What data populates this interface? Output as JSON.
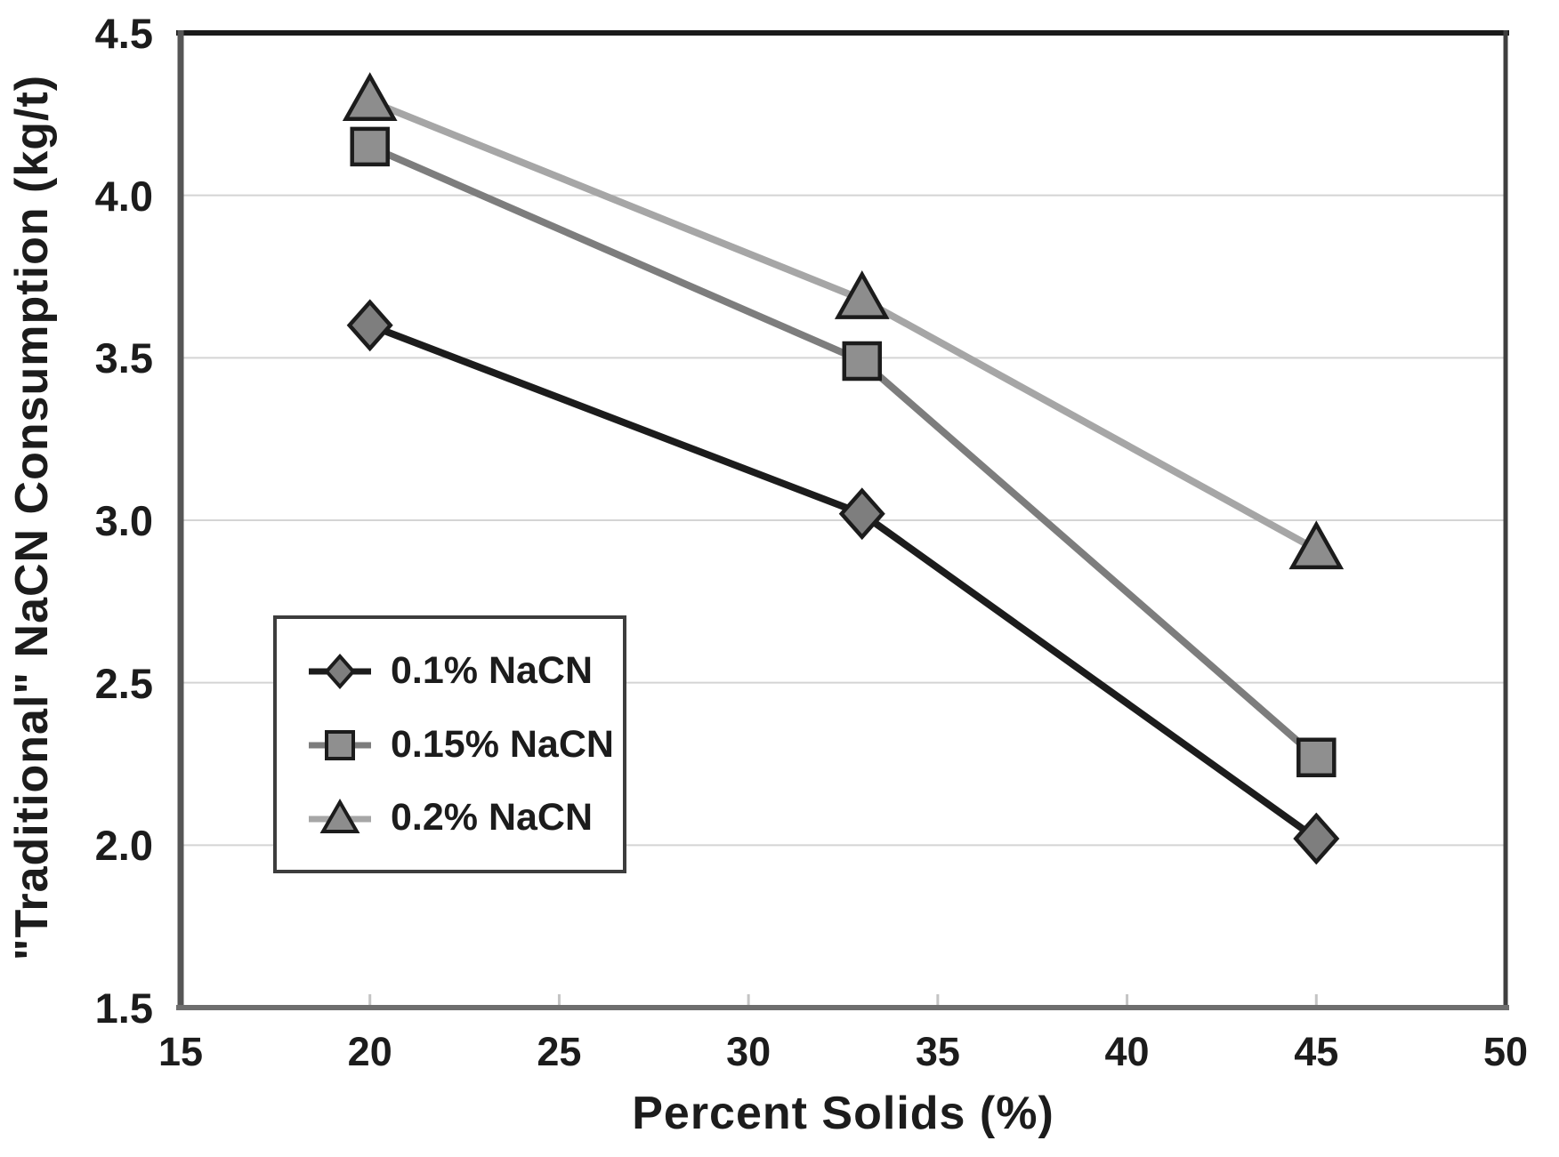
{
  "chart_data": {
    "type": "line",
    "title": "",
    "xlabel": "Percent Solids (%)",
    "ylabel": "\"Traditional\" NaCN Consumption (kg/t)",
    "xlim": [
      15,
      50
    ],
    "ylim": [
      1.5,
      4.5
    ],
    "x_ticks": [
      15,
      20,
      25,
      30,
      35,
      40,
      45,
      50
    ],
    "y_ticks": [
      1.5,
      2.0,
      2.5,
      3.0,
      3.5,
      4.0,
      4.5
    ],
    "grid": "horizontal-only",
    "legend_position": "inside-left-middle",
    "x": [
      20,
      33,
      45
    ],
    "series": [
      {
        "name": "0.1% NaCN",
        "marker": "diamond",
        "line_color": "#1c1c1c",
        "marker_fill": "#7e7e7e",
        "values": [
          3.6,
          3.02,
          2.02
        ]
      },
      {
        "name": "0.15% NaCN",
        "marker": "square",
        "line_color": "#7d7d7d",
        "marker_fill": "#8f8f8f",
        "values": [
          4.15,
          3.49,
          2.27
        ]
      },
      {
        "name": "0.2% NaCN",
        "marker": "triangle",
        "line_color": "#a6a6a6",
        "marker_fill": "#8d8d8d",
        "values": [
          4.29,
          3.68,
          2.91
        ]
      }
    ],
    "colors": {
      "background": "#ffffff",
      "grid": "#d4d4d4",
      "inner_tick": "#c4c4c4",
      "text": "#1c1c1c",
      "marker_stroke": "#1c1c1c",
      "frame_top": "#1a1a1a",
      "frame_left": "#565656",
      "frame_right": "#3f3f3f",
      "frame_bottom": "#6e6e6e",
      "legend_border": "#3d3d3d"
    }
  }
}
